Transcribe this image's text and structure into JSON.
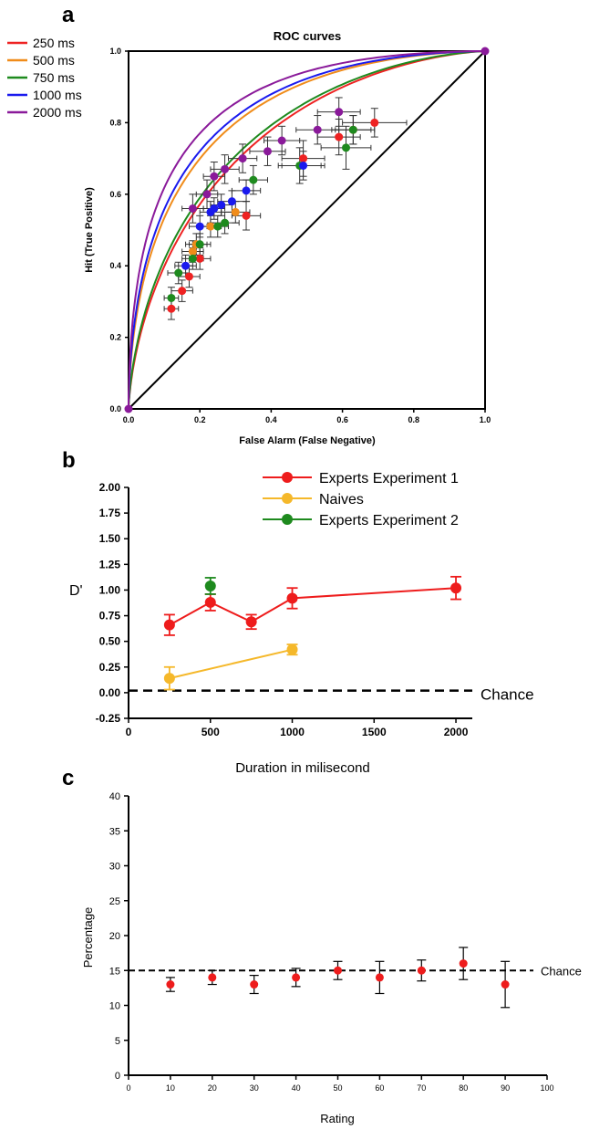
{
  "figure": {
    "panel_labels": [
      "a",
      "b",
      "c"
    ]
  },
  "chart_data": [
    {
      "panel": "a",
      "type": "line",
      "title": "ROC curves",
      "xlabel": "False Alarm (False Negative)",
      "ylabel": "Hit (True Positive)",
      "xlim": [
        0,
        1
      ],
      "ylim": [
        0,
        1
      ],
      "x_ticks": [
        "0.0",
        "0.2",
        "0.4",
        "0.6",
        "0.8",
        "1.0"
      ],
      "y_ticks": [
        "0.0",
        "0.2",
        "0.4",
        "0.6",
        "0.8",
        "1.0"
      ],
      "grid": false,
      "legend_position": "top-left outside",
      "diagonal": true,
      "series": [
        {
          "name": "250 ms",
          "color": "#ee2222",
          "dprime": 0.66,
          "points": [
            {
              "x": 0.12,
              "y": 0.28,
              "xerr": 0.02,
              "yerr": 0.03
            },
            {
              "x": 0.15,
              "y": 0.33,
              "xerr": 0.03,
              "yerr": 0.03
            },
            {
              "x": 0.17,
              "y": 0.37,
              "xerr": 0.03,
              "yerr": 0.03
            },
            {
              "x": 0.2,
              "y": 0.42,
              "xerr": 0.03,
              "yerr": 0.03
            },
            {
              "x": 0.33,
              "y": 0.54,
              "xerr": 0.04,
              "yerr": 0.04
            },
            {
              "x": 0.49,
              "y": 0.7,
              "xerr": 0.06,
              "yerr": 0.05
            },
            {
              "x": 0.59,
              "y": 0.76,
              "xerr": 0.06,
              "yerr": 0.05
            },
            {
              "x": 0.63,
              "y": 0.78,
              "xerr": 0.05,
              "yerr": 0.04
            },
            {
              "x": 0.69,
              "y": 0.8,
              "xerr": 0.09,
              "yerr": 0.04
            }
          ]
        },
        {
          "name": "500 ms",
          "color": "#f08c1a",
          "dprime": 0.88,
          "points": [
            {
              "x": 0.18,
              "y": 0.44,
              "xerr": 0.03,
              "yerr": 0.03
            },
            {
              "x": 0.19,
              "y": 0.46,
              "xerr": 0.03,
              "yerr": 0.03
            },
            {
              "x": 0.23,
              "y": 0.51,
              "xerr": 0.03,
              "yerr": 0.03
            },
            {
              "x": 0.3,
              "y": 0.55,
              "xerr": 0.04,
              "yerr": 0.03
            }
          ]
        },
        {
          "name": "750 ms",
          "color": "#1e8a1e",
          "dprime": 0.69,
          "points": [
            {
              "x": 0.12,
              "y": 0.31,
              "xerr": 0.02,
              "yerr": 0.03
            },
            {
              "x": 0.14,
              "y": 0.38,
              "xerr": 0.03,
              "yerr": 0.03
            },
            {
              "x": 0.18,
              "y": 0.42,
              "xerr": 0.03,
              "yerr": 0.03
            },
            {
              "x": 0.2,
              "y": 0.46,
              "xerr": 0.03,
              "yerr": 0.03
            },
            {
              "x": 0.25,
              "y": 0.51,
              "xerr": 0.03,
              "yerr": 0.03
            },
            {
              "x": 0.27,
              "y": 0.52,
              "xerr": 0.04,
              "yerr": 0.03
            },
            {
              "x": 0.35,
              "y": 0.64,
              "xerr": 0.04,
              "yerr": 0.04
            },
            {
              "x": 0.48,
              "y": 0.68,
              "xerr": 0.06,
              "yerr": 0.05
            },
            {
              "x": 0.61,
              "y": 0.73,
              "xerr": 0.07,
              "yerr": 0.06
            },
            {
              "x": 0.63,
              "y": 0.78,
              "xerr": 0.06,
              "yerr": 0.04
            }
          ]
        },
        {
          "name": "1000 ms",
          "color": "#1a1aee",
          "dprime": 0.92,
          "points": [
            {
              "x": 0.16,
              "y": 0.4,
              "xerr": 0.03,
              "yerr": 0.03
            },
            {
              "x": 0.2,
              "y": 0.51,
              "xerr": 0.03,
              "yerr": 0.03
            },
            {
              "x": 0.23,
              "y": 0.55,
              "xerr": 0.03,
              "yerr": 0.03
            },
            {
              "x": 0.24,
              "y": 0.56,
              "xerr": 0.03,
              "yerr": 0.03
            },
            {
              "x": 0.26,
              "y": 0.57,
              "xerr": 0.03,
              "yerr": 0.03
            },
            {
              "x": 0.29,
              "y": 0.58,
              "xerr": 0.04,
              "yerr": 0.03
            },
            {
              "x": 0.33,
              "y": 0.61,
              "xerr": 0.04,
              "yerr": 0.03
            },
            {
              "x": 0.49,
              "y": 0.68,
              "xerr": 0.06,
              "yerr": 0.04
            }
          ]
        },
        {
          "name": "2000 ms",
          "color": "#8a1a9a",
          "dprime": 1.02,
          "points": [
            {
              "x": 0.18,
              "y": 0.56,
              "xerr": 0.03,
              "yerr": 0.04
            },
            {
              "x": 0.22,
              "y": 0.6,
              "xerr": 0.03,
              "yerr": 0.04
            },
            {
              "x": 0.24,
              "y": 0.65,
              "xerr": 0.03,
              "yerr": 0.04
            },
            {
              "x": 0.27,
              "y": 0.67,
              "xerr": 0.04,
              "yerr": 0.04
            },
            {
              "x": 0.32,
              "y": 0.7,
              "xerr": 0.04,
              "yerr": 0.04
            },
            {
              "x": 0.39,
              "y": 0.72,
              "xerr": 0.05,
              "yerr": 0.04
            },
            {
              "x": 0.43,
              "y": 0.75,
              "xerr": 0.05,
              "yerr": 0.04
            },
            {
              "x": 0.53,
              "y": 0.78,
              "xerr": 0.06,
              "yerr": 0.04
            },
            {
              "x": 0.59,
              "y": 0.83,
              "xerr": 0.06,
              "yerr": 0.04
            }
          ]
        }
      ],
      "anchor_points": [
        {
          "x": 0,
          "y": 0,
          "color": "#8a1a9a"
        },
        {
          "x": 1,
          "y": 1,
          "color": "#8a1a9a"
        }
      ]
    },
    {
      "panel": "b",
      "type": "line",
      "title": "",
      "xlabel": "Duration in milisecond",
      "ylabel": "D'",
      "xlim": [
        0,
        2100
      ],
      "ylim": [
        -0.25,
        2.0
      ],
      "x_ticks": [
        0,
        500,
        1000,
        1500,
        2000
      ],
      "y_ticks": [
        "-0.25",
        "0.00",
        "0.25",
        "0.50",
        "0.75",
        "1.00",
        "1.25",
        "1.50",
        "1.75",
        "2.00"
      ],
      "grid": false,
      "legend_position": "top-right",
      "chance": {
        "value": 0.02,
        "label": "Chance"
      },
      "series": [
        {
          "name": "Experts Experiment 1",
          "color": "#ee1c1c",
          "connected": true,
          "x": [
            250,
            500,
            750,
            1000,
            2000
          ],
          "y": [
            0.66,
            0.88,
            0.69,
            0.92,
            1.02
          ],
          "err": [
            0.1,
            0.08,
            0.07,
            0.1,
            0.11
          ]
        },
        {
          "name": "Naives",
          "color": "#f5b82a",
          "connected": true,
          "x": [
            250,
            1000
          ],
          "y": [
            0.14,
            0.42
          ],
          "err": [
            0.11,
            0.05
          ]
        },
        {
          "name": "Experts Experiment 2",
          "color": "#1e8a1e",
          "connected": false,
          "x": [
            500
          ],
          "y": [
            1.04
          ],
          "err": [
            0.08
          ]
        }
      ]
    },
    {
      "panel": "c",
      "type": "scatter",
      "title": "",
      "xlabel": "Rating",
      "ylabel": "Percentage",
      "xlim": [
        0,
        100
      ],
      "ylim": [
        0,
        40
      ],
      "x_ticks": [
        0,
        10,
        20,
        30,
        40,
        50,
        60,
        70,
        80,
        90,
        100
      ],
      "y_ticks": [
        0,
        5,
        10,
        15,
        20,
        25,
        30,
        35,
        40
      ],
      "grid": false,
      "chance": {
        "value": 15,
        "label": "Chance"
      },
      "series": [
        {
          "name": "",
          "color": "#ee1c1c",
          "x": [
            10,
            20,
            30,
            40,
            50,
            60,
            70,
            80,
            90
          ],
          "y": [
            13,
            14,
            13,
            14,
            15,
            14,
            15,
            16,
            13
          ],
          "err": [
            1.0,
            1.0,
            1.3,
            1.3,
            1.3,
            2.3,
            1.5,
            2.3,
            3.3
          ]
        }
      ]
    }
  ]
}
